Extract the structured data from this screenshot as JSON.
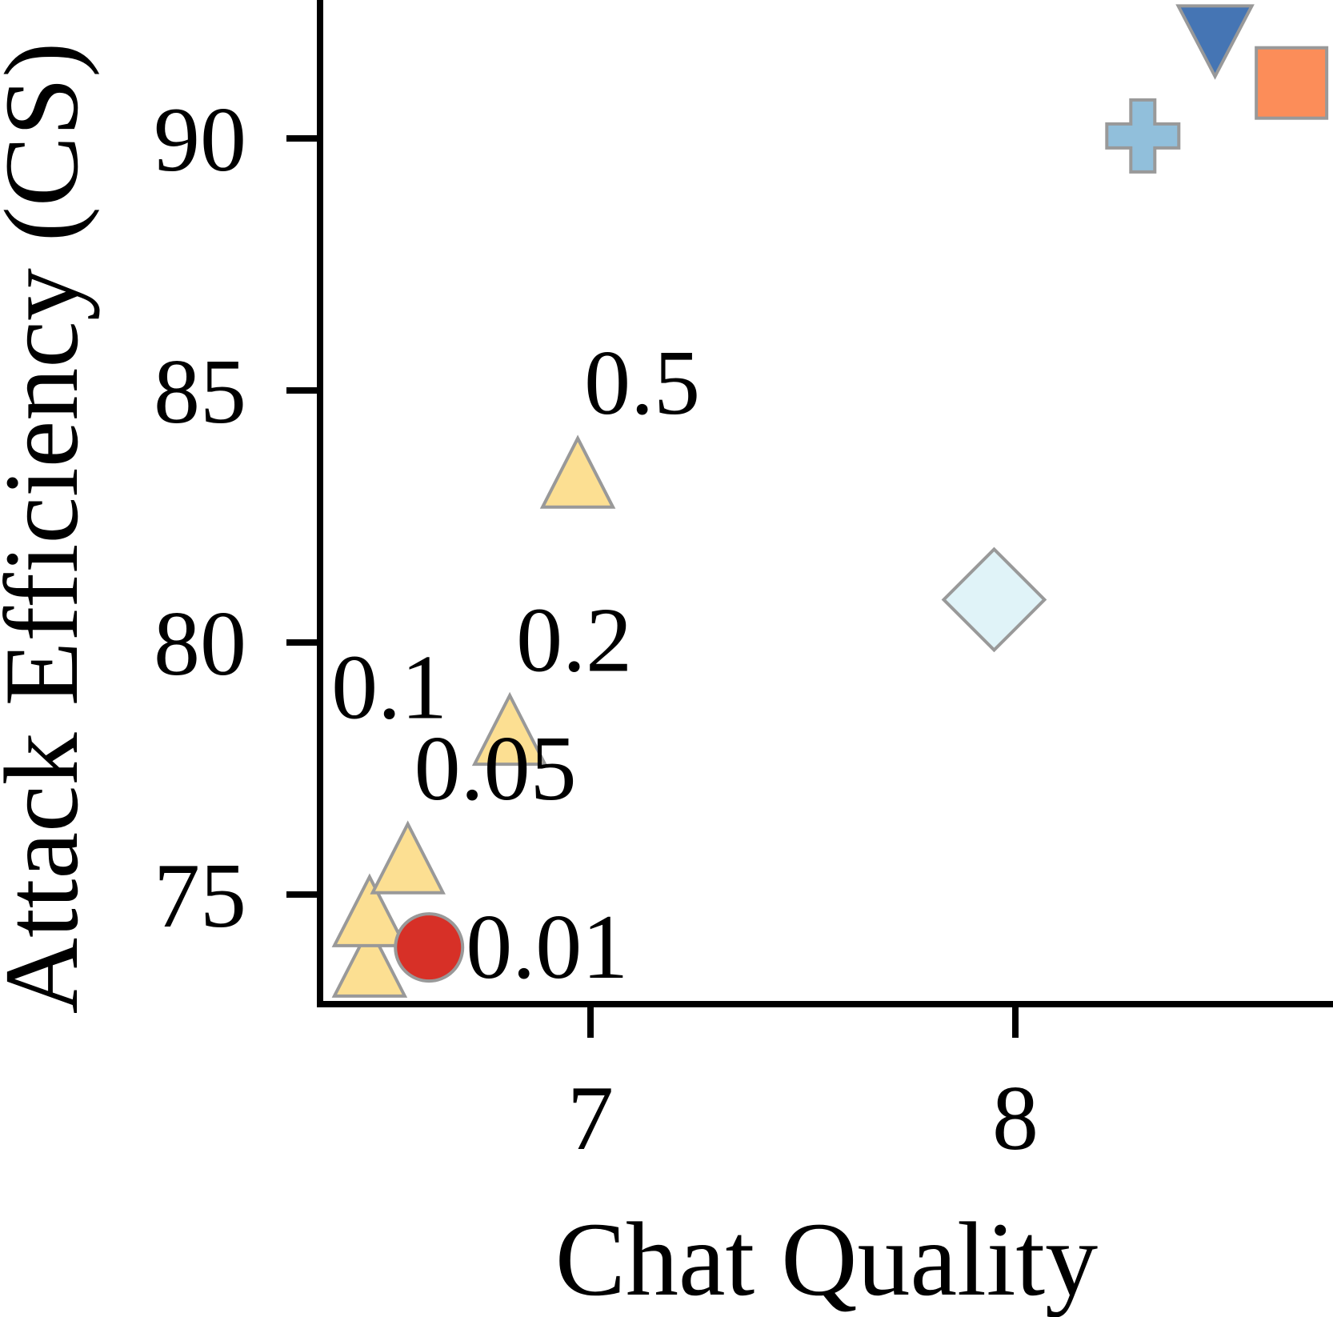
{
  "chart_data": {
    "type": "scatter",
    "title": "",
    "xlabel": "Chat Quality",
    "ylabel": "Attack Efficiency (CS)",
    "xlim": [
      6.37,
      8.75
    ],
    "ylim": [
      72.85,
      93.0
    ],
    "xticks": [
      7,
      8
    ],
    "yticks": [
      75,
      80,
      85,
      90
    ],
    "grid": false,
    "marker_edge_color": "#999999",
    "series": [
      {
        "marker": "triangle-up",
        "color": "#fcdf92",
        "points": [
          {
            "x": 6.48,
            "y": 73.6,
            "label": ""
          },
          {
            "x": 6.48,
            "y": 74.6,
            "label": ""
          },
          {
            "x": 6.57,
            "y": 75.65,
            "label": "0.05"
          },
          {
            "x": 6.81,
            "y": 78.2,
            "label": "0.2"
          },
          {
            "x": 6.97,
            "y": 83.3,
            "label": "0.5"
          }
        ]
      },
      {
        "marker": "circle",
        "color": "#d73027",
        "points": [
          {
            "x": 6.62,
            "y": 73.95,
            "label": "0.01"
          }
        ]
      },
      {
        "marker": "diamond",
        "color": "#e0f3f8",
        "points": [
          {
            "x": 7.95,
            "y": 80.85,
            "label": ""
          }
        ]
      },
      {
        "marker": "plus",
        "color": "#91bfdb",
        "points": [
          {
            "x": 8.3,
            "y": 90.05,
            "label": ""
          }
        ]
      },
      {
        "marker": "triangle-down",
        "color": "#4575b4",
        "points": [
          {
            "x": 8.47,
            "y": 92.0,
            "label": ""
          }
        ]
      },
      {
        "marker": "square",
        "color": "#fc8d59",
        "points": [
          {
            "x": 8.65,
            "y": 91.1,
            "label": ""
          }
        ]
      }
    ],
    "annotations": [
      {
        "text": "0.1",
        "x": 6.39,
        "y": 79.1
      }
    ]
  }
}
